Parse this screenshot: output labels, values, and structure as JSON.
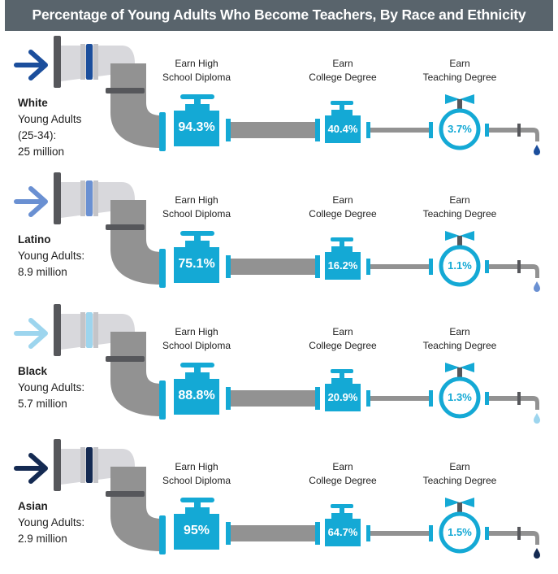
{
  "title": "Percentage of Young Adults Who Become Teachers, By Race and Ethnicity",
  "stages": [
    "Earn High School Diploma",
    "Earn College Degree",
    "Earn Teaching Degree"
  ],
  "stage_lines": [
    [
      "Earn High",
      "School Diploma"
    ],
    [
      "Earn",
      "College Degree"
    ],
    [
      "Earn",
      "Teaching Degree"
    ]
  ],
  "colors": {
    "pipe": "#929292",
    "pipe_light": "#d8d8dc",
    "valve": "#14a9d5",
    "title_bg": "#59646c",
    "dark_ring": "#56575b"
  },
  "icons": [
    "arrow-icon",
    "pipe-inlet-icon",
    "valve-icon",
    "gauge-valve-icon",
    "faucet-icon",
    "water-drop-icon"
  ],
  "groups": [
    {
      "name": "White",
      "lines": [
        "Young Adults",
        "(25-34):",
        "25 million"
      ],
      "arrow_color": "#1b4e9c",
      "drop_color": "#1b4e9c",
      "high_school": "94.3%",
      "college": "40.4%",
      "teaching": "3.7%"
    },
    {
      "name": "Latino",
      "lines": [
        "Young Adults:",
        "8.9 million"
      ],
      "arrow_color": "#6a90d2",
      "drop_color": "#6a90d2",
      "high_school": "75.1%",
      "college": "16.2%",
      "teaching": "1.1%"
    },
    {
      "name": "Black",
      "lines": [
        "Young Adults:",
        "5.7 million"
      ],
      "arrow_color": "#9dd5ee",
      "drop_color": "#9dd5ee",
      "high_school": "88.8%",
      "college": "20.9%",
      "teaching": "1.3%"
    },
    {
      "name": "Asian",
      "lines": [
        "Young Adults:",
        "2.9 million"
      ],
      "arrow_color": "#142a52",
      "drop_color": "#142a52",
      "high_school": "95%",
      "college": "64.7%",
      "teaching": "1.5%"
    }
  ],
  "chart_data": {
    "type": "table",
    "title": "Percentage of Young Adults Who Become Teachers, By Race and Ethnicity",
    "columns": [
      "Earn High School Diploma",
      "Earn College Degree",
      "Earn Teaching Degree"
    ],
    "rows": [
      "White",
      "Latino",
      "Black",
      "Asian"
    ],
    "values": [
      [
        94.3,
        40.4,
        3.7
      ],
      [
        75.1,
        16.2,
        1.1
      ],
      [
        88.8,
        20.9,
        1.3
      ],
      [
        95,
        64.7,
        1.5
      ]
    ]
  }
}
